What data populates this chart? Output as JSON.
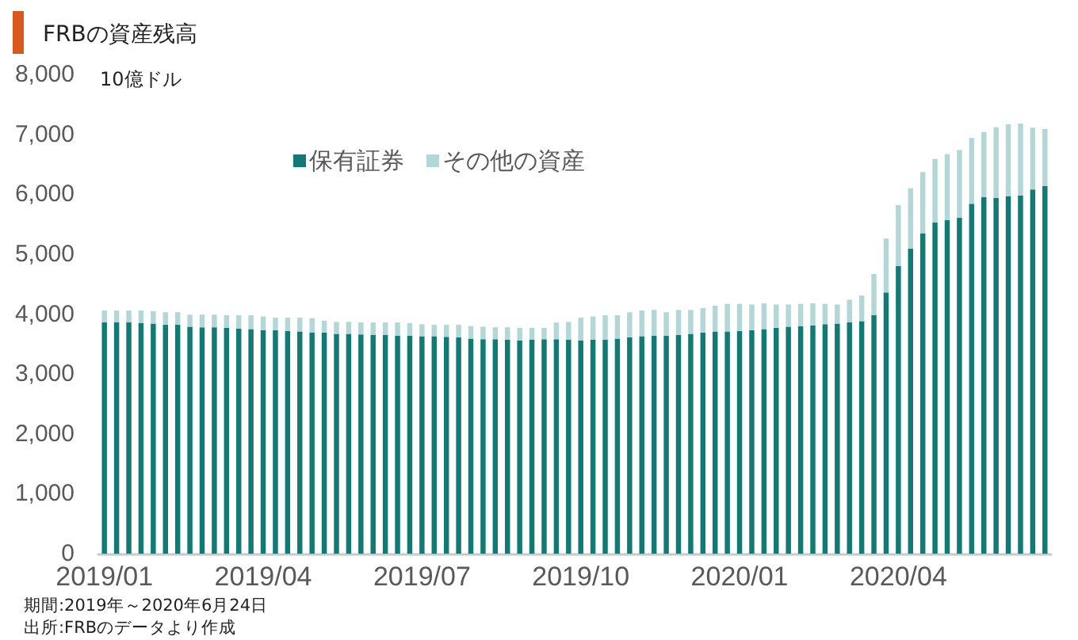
{
  "chart_data": {
    "type": "bar",
    "title": "FRBの資産残高",
    "ylabel": "10億ドル",
    "categories": [
      "2019/01",
      null,
      null,
      null,
      null,
      null,
      null,
      null,
      null,
      null,
      null,
      null,
      null,
      "2019/04",
      null,
      null,
      null,
      null,
      null,
      null,
      null,
      null,
      null,
      null,
      null,
      null,
      "2019/07",
      null,
      null,
      null,
      null,
      null,
      null,
      null,
      null,
      null,
      null,
      null,
      null,
      "2019/10",
      null,
      null,
      null,
      null,
      null,
      null,
      null,
      null,
      null,
      null,
      null,
      null,
      "2020/01",
      null,
      null,
      null,
      null,
      null,
      null,
      null,
      null,
      null,
      null,
      null,
      null,
      "2020/04",
      null,
      null,
      null,
      null,
      null,
      null,
      null,
      null,
      null,
      null,
      null,
      null
    ],
    "series": [
      {
        "name": "保有証券",
        "color": "#127a74",
        "values": [
          3860,
          3860,
          3860,
          3850,
          3840,
          3820,
          3820,
          3790,
          3780,
          3780,
          3770,
          3760,
          3750,
          3730,
          3730,
          3720,
          3710,
          3690,
          3690,
          3670,
          3670,
          3660,
          3650,
          3650,
          3640,
          3640,
          3630,
          3630,
          3620,
          3610,
          3590,
          3580,
          3580,
          3570,
          3560,
          3570,
          3580,
          3580,
          3570,
          3560,
          3570,
          3570,
          3590,
          3610,
          3630,
          3640,
          3640,
          3650,
          3670,
          3690,
          3710,
          3710,
          3720,
          3730,
          3750,
          3770,
          3790,
          3800,
          3810,
          3830,
          3840,
          3860,
          3880,
          3980,
          4360,
          4800,
          5090,
          5350,
          5530,
          5570,
          5610,
          5840,
          5950,
          5940,
          5970,
          5980,
          6080,
          6140
        ]
      },
      {
        "name": "その他の資産",
        "color": "#b3d6d6",
        "values": [
          200,
          200,
          200,
          210,
          210,
          210,
          210,
          200,
          210,
          210,
          210,
          220,
          230,
          230,
          210,
          220,
          230,
          240,
          200,
          200,
          200,
          200,
          210,
          210,
          220,
          210,
          200,
          190,
          200,
          210,
          210,
          210,
          200,
          210,
          210,
          200,
          190,
          280,
          300,
          380,
          390,
          410,
          390,
          420,
          430,
          430,
          390,
          420,
          400,
          410,
          430,
          460,
          450,
          430,
          430,
          390,
          370,
          370,
          370,
          340,
          320,
          380,
          430,
          690,
          900,
          1020,
          1010,
          1020,
          1060,
          1100,
          1130,
          1100,
          1090,
          1180,
          1200,
          1200,
          1030,
          950
        ]
      }
    ],
    "stacked": true,
    "ylim": [
      0,
      8000
    ],
    "yticks": [
      0,
      {
        "value": 1000,
        "label": "1,000"
      },
      {
        "value": 2000,
        "label": "2,000"
      },
      {
        "value": 3000,
        "label": "3,000"
      },
      {
        "value": 4000,
        "label": "4,000"
      },
      {
        "value": 5000,
        "label": "5,000"
      },
      {
        "value": 6000,
        "label": "6,000"
      },
      {
        "value": 7000,
        "label": "7,000"
      },
      {
        "value": 8000,
        "label": "8,000"
      }
    ],
    "grid": false,
    "legend": "top left",
    "annotations": [
      "期間:2019年～2020年6月24日",
      "出所:FRBのデータより作成"
    ]
  }
}
